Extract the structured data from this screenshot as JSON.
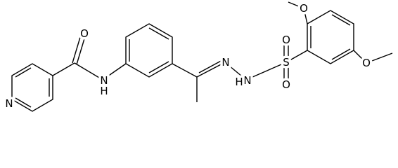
{
  "atoms": {
    "carbonyl_o": "O",
    "pyridine_n": "N",
    "amide_n": "N",
    "amide_h": "H",
    "imine_n": "N",
    "hydrazide_n": "N",
    "hydrazide_h": "H",
    "sulfur": "S",
    "sulfonyl_o_top": "O",
    "sulfonyl_o_bottom": "O",
    "methoxy_o_top": "O",
    "methoxy_o_right": "O"
  }
}
